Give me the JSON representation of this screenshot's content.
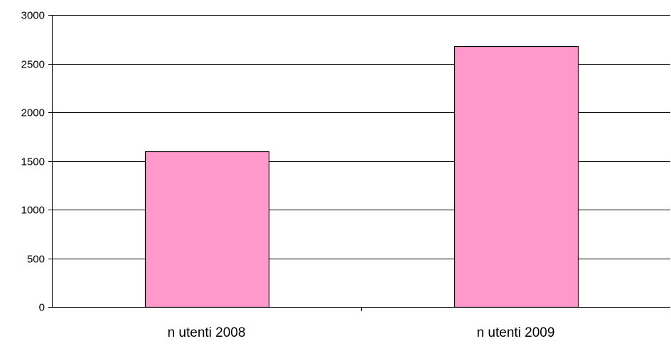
{
  "chart_data": {
    "type": "bar",
    "categories": [
      "n utenti 2008",
      "n utenti 2009"
    ],
    "values": [
      1595,
      2680
    ],
    "ylim": [
      0,
      3000
    ],
    "yticks": [
      "0",
      "500",
      "1000",
      "1500",
      "2000",
      "2500",
      "3000"
    ],
    "grid": true,
    "legend": "none",
    "colors": {
      "bar_fill": "#ff99cc",
      "bar_stroke": "#000000",
      "grid": "#000000",
      "axis": "#000000"
    }
  }
}
